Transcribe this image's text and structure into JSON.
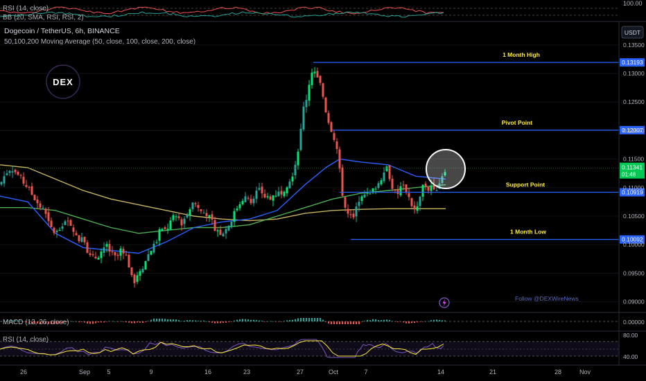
{
  "header": {
    "rsi_top": "RSI (14, close)",
    "bb_top": "BB (20, SMA, RSI, RSI, 2)",
    "title": "Dogecoin / TetherUS, 6h, BINANCE",
    "ma_study": "50,100,200 Moving Average (50, close, 100, close, 200, close)",
    "unit_button": "USDT",
    "top_scale": "100.00"
  },
  "logo": {
    "text": "DEX"
  },
  "watermark": "Follow @DEXWireNews",
  "macd_label": "MACD (12, 26, close)",
  "rsi_label": "RSI (14, close)",
  "price_axis": [
    "0.13500",
    "0.13000",
    "0.12500",
    "0.12000",
    "0.11500",
    "0.11000",
    "0.10500",
    "0.10000",
    "0.09500",
    "0.09000"
  ],
  "macd_axis": "0.00000",
  "rsi_axis": [
    "80.00",
    "40.00"
  ],
  "date_axis": [
    "26",
    "Sep",
    "5",
    "9",
    "16",
    "23",
    "27",
    "Oct",
    "7",
    "14",
    "21",
    "28",
    "Nov"
  ],
  "chart_data": {
    "type": "candlestick",
    "symbol": "DOGE/USDT",
    "interval": "6h",
    "ylim": [
      0.0885,
      0.1385
    ],
    "levels": [
      {
        "name": "1 Month High",
        "price": 0.13193,
        "label": "0.13193"
      },
      {
        "name": "Pivot Point",
        "price": 0.12007,
        "label": "0.12007"
      },
      {
        "name": "Support Point",
        "price": 0.10919,
        "label": "0.10919"
      },
      {
        "name": "1 Month Low",
        "price": 0.10092,
        "label": "0.10092"
      }
    ],
    "last_price": {
      "value": 0.11341,
      "label": "0.11341",
      "countdown": "01:48"
    },
    "close_path": [
      [
        0,
        0.1105
      ],
      [
        8,
        0.1125
      ],
      [
        16,
        0.1135
      ],
      [
        24,
        0.1125
      ],
      [
        32,
        0.1112
      ],
      [
        40,
        0.11
      ],
      [
        48,
        0.1085
      ],
      [
        56,
        0.107
      ],
      [
        64,
        0.1058
      ],
      [
        72,
        0.103
      ],
      [
        80,
        0.102
      ],
      [
        88,
        0.103
      ],
      [
        96,
        0.104
      ],
      [
        104,
        0.1035
      ],
      [
        112,
        0.1005
      ],
      [
        120,
        0.102
      ],
      [
        128,
        0.098
      ],
      [
        136,
        0.0975
      ],
      [
        144,
        0.0985
      ],
      [
        152,
        0.1
      ],
      [
        160,
        0.0985
      ],
      [
        168,
        0.0975
      ],
      [
        176,
        0.0995
      ],
      [
        184,
        0.0975
      ],
      [
        192,
        0.093
      ],
      [
        200,
        0.0955
      ],
      [
        208,
        0.0965
      ],
      [
        216,
        0.099
      ],
      [
        224,
        0.1
      ],
      [
        232,
        0.103
      ],
      [
        240,
        0.1025
      ],
      [
        248,
        0.1045
      ],
      [
        256,
        0.105
      ],
      [
        264,
        0.1035
      ],
      [
        272,
        0.1065
      ],
      [
        280,
        0.1075
      ],
      [
        288,
        0.106
      ],
      [
        296,
        0.1055
      ],
      [
        304,
        0.1045
      ],
      [
        312,
        0.1025
      ],
      [
        320,
        0.102
      ],
      [
        328,
        0.103
      ],
      [
        336,
        0.105
      ],
      [
        344,
        0.107
      ],
      [
        352,
        0.1085
      ],
      [
        360,
        0.1075
      ],
      [
        368,
        0.109
      ],
      [
        376,
        0.1095
      ],
      [
        384,
        0.108
      ],
      [
        392,
        0.1085
      ],
      [
        400,
        0.109
      ],
      [
        408,
        0.1095
      ],
      [
        416,
        0.111
      ],
      [
        424,
        0.113
      ],
      [
        432,
        0.118
      ],
      [
        438,
        0.124
      ],
      [
        444,
        0.1265
      ],
      [
        448,
        0.13
      ],
      [
        452,
        0.131
      ],
      [
        456,
        0.1295
      ],
      [
        460,
        0.1285
      ],
      [
        464,
        0.1275
      ],
      [
        468,
        0.1245
      ],
      [
        472,
        0.1225
      ],
      [
        476,
        0.121
      ],
      [
        480,
        0.1195
      ],
      [
        484,
        0.118
      ],
      [
        488,
        0.1155
      ],
      [
        492,
        0.11
      ],
      [
        496,
        0.108
      ],
      [
        500,
        0.105
      ],
      [
        504,
        0.1055
      ],
      [
        508,
        0.104
      ],
      [
        512,
        0.105
      ],
      [
        516,
        0.1075
      ],
      [
        520,
        0.1085
      ],
      [
        524,
        0.1095
      ],
      [
        528,
        0.109
      ],
      [
        532,
        0.1085
      ],
      [
        536,
        0.109
      ],
      [
        540,
        0.11
      ],
      [
        544,
        0.1105
      ],
      [
        548,
        0.111
      ],
      [
        552,
        0.1125
      ],
      [
        556,
        0.114
      ],
      [
        560,
        0.113
      ],
      [
        564,
        0.111
      ],
      [
        568,
        0.1095
      ],
      [
        572,
        0.1085
      ],
      [
        576,
        0.1095
      ],
      [
        580,
        0.1105
      ],
      [
        584,
        0.11
      ],
      [
        588,
        0.109
      ],
      [
        592,
        0.1075
      ],
      [
        596,
        0.1065
      ],
      [
        600,
        0.1055
      ],
      [
        604,
        0.1075
      ],
      [
        608,
        0.1095
      ],
      [
        612,
        0.111
      ],
      [
        616,
        0.1095
      ],
      [
        620,
        0.11
      ],
      [
        624,
        0.111
      ],
      [
        628,
        0.1095
      ],
      [
        632,
        0.1105
      ],
      [
        636,
        0.1115
      ],
      [
        640,
        0.113
      ],
      [
        643,
        0.1134
      ]
    ],
    "ma50": [
      [
        0,
        0.1085
      ],
      [
        40,
        0.1075
      ],
      [
        80,
        0.102
      ],
      [
        120,
        0.0995
      ],
      [
        160,
        0.099
      ],
      [
        200,
        0.0985
      ],
      [
        240,
        0.1005
      ],
      [
        280,
        0.103
      ],
      [
        320,
        0.104
      ],
      [
        360,
        0.1045
      ],
      [
        400,
        0.106
      ],
      [
        440,
        0.1105
      ],
      [
        470,
        0.1135
      ],
      [
        490,
        0.115
      ],
      [
        520,
        0.1145
      ],
      [
        560,
        0.114
      ],
      [
        600,
        0.112
      ],
      [
        643,
        0.1115
      ]
    ],
    "ma100": [
      [
        0,
        0.1065
      ],
      [
        40,
        0.1065
      ],
      [
        80,
        0.106
      ],
      [
        120,
        0.1045
      ],
      [
        160,
        0.103
      ],
      [
        200,
        0.102
      ],
      [
        240,
        0.1025
      ],
      [
        280,
        0.103
      ],
      [
        320,
        0.103
      ],
      [
        360,
        0.1035
      ],
      [
        400,
        0.105
      ],
      [
        440,
        0.1065
      ],
      [
        480,
        0.108
      ],
      [
        520,
        0.109
      ],
      [
        560,
        0.1095
      ],
      [
        600,
        0.11
      ],
      [
        643,
        0.1105
      ]
    ],
    "ma200": [
      [
        0,
        0.114
      ],
      [
        40,
        0.1135
      ],
      [
        80,
        0.1115
      ],
      [
        120,
        0.1095
      ],
      [
        160,
        0.108
      ],
      [
        200,
        0.107
      ],
      [
        240,
        0.106
      ],
      [
        280,
        0.105
      ],
      [
        320,
        0.1045
      ],
      [
        360,
        0.1042
      ],
      [
        400,
        0.1045
      ],
      [
        440,
        0.1055
      ],
      [
        480,
        0.106
      ],
      [
        520,
        0.1062
      ],
      [
        560,
        0.1063
      ],
      [
        600,
        0.1063
      ],
      [
        643,
        0.1063
      ]
    ],
    "colors": {
      "up": "#26a69a",
      "up_bright": "#00e676",
      "down": "#ef5350",
      "ma50": "#2962ff",
      "ma100": "#4caf50",
      "ma200": "#c8b560",
      "level": "#2962ff",
      "level_text": "#ffeb3b",
      "price_label": "#2962ff",
      "last_label": "#00c853"
    }
  }
}
